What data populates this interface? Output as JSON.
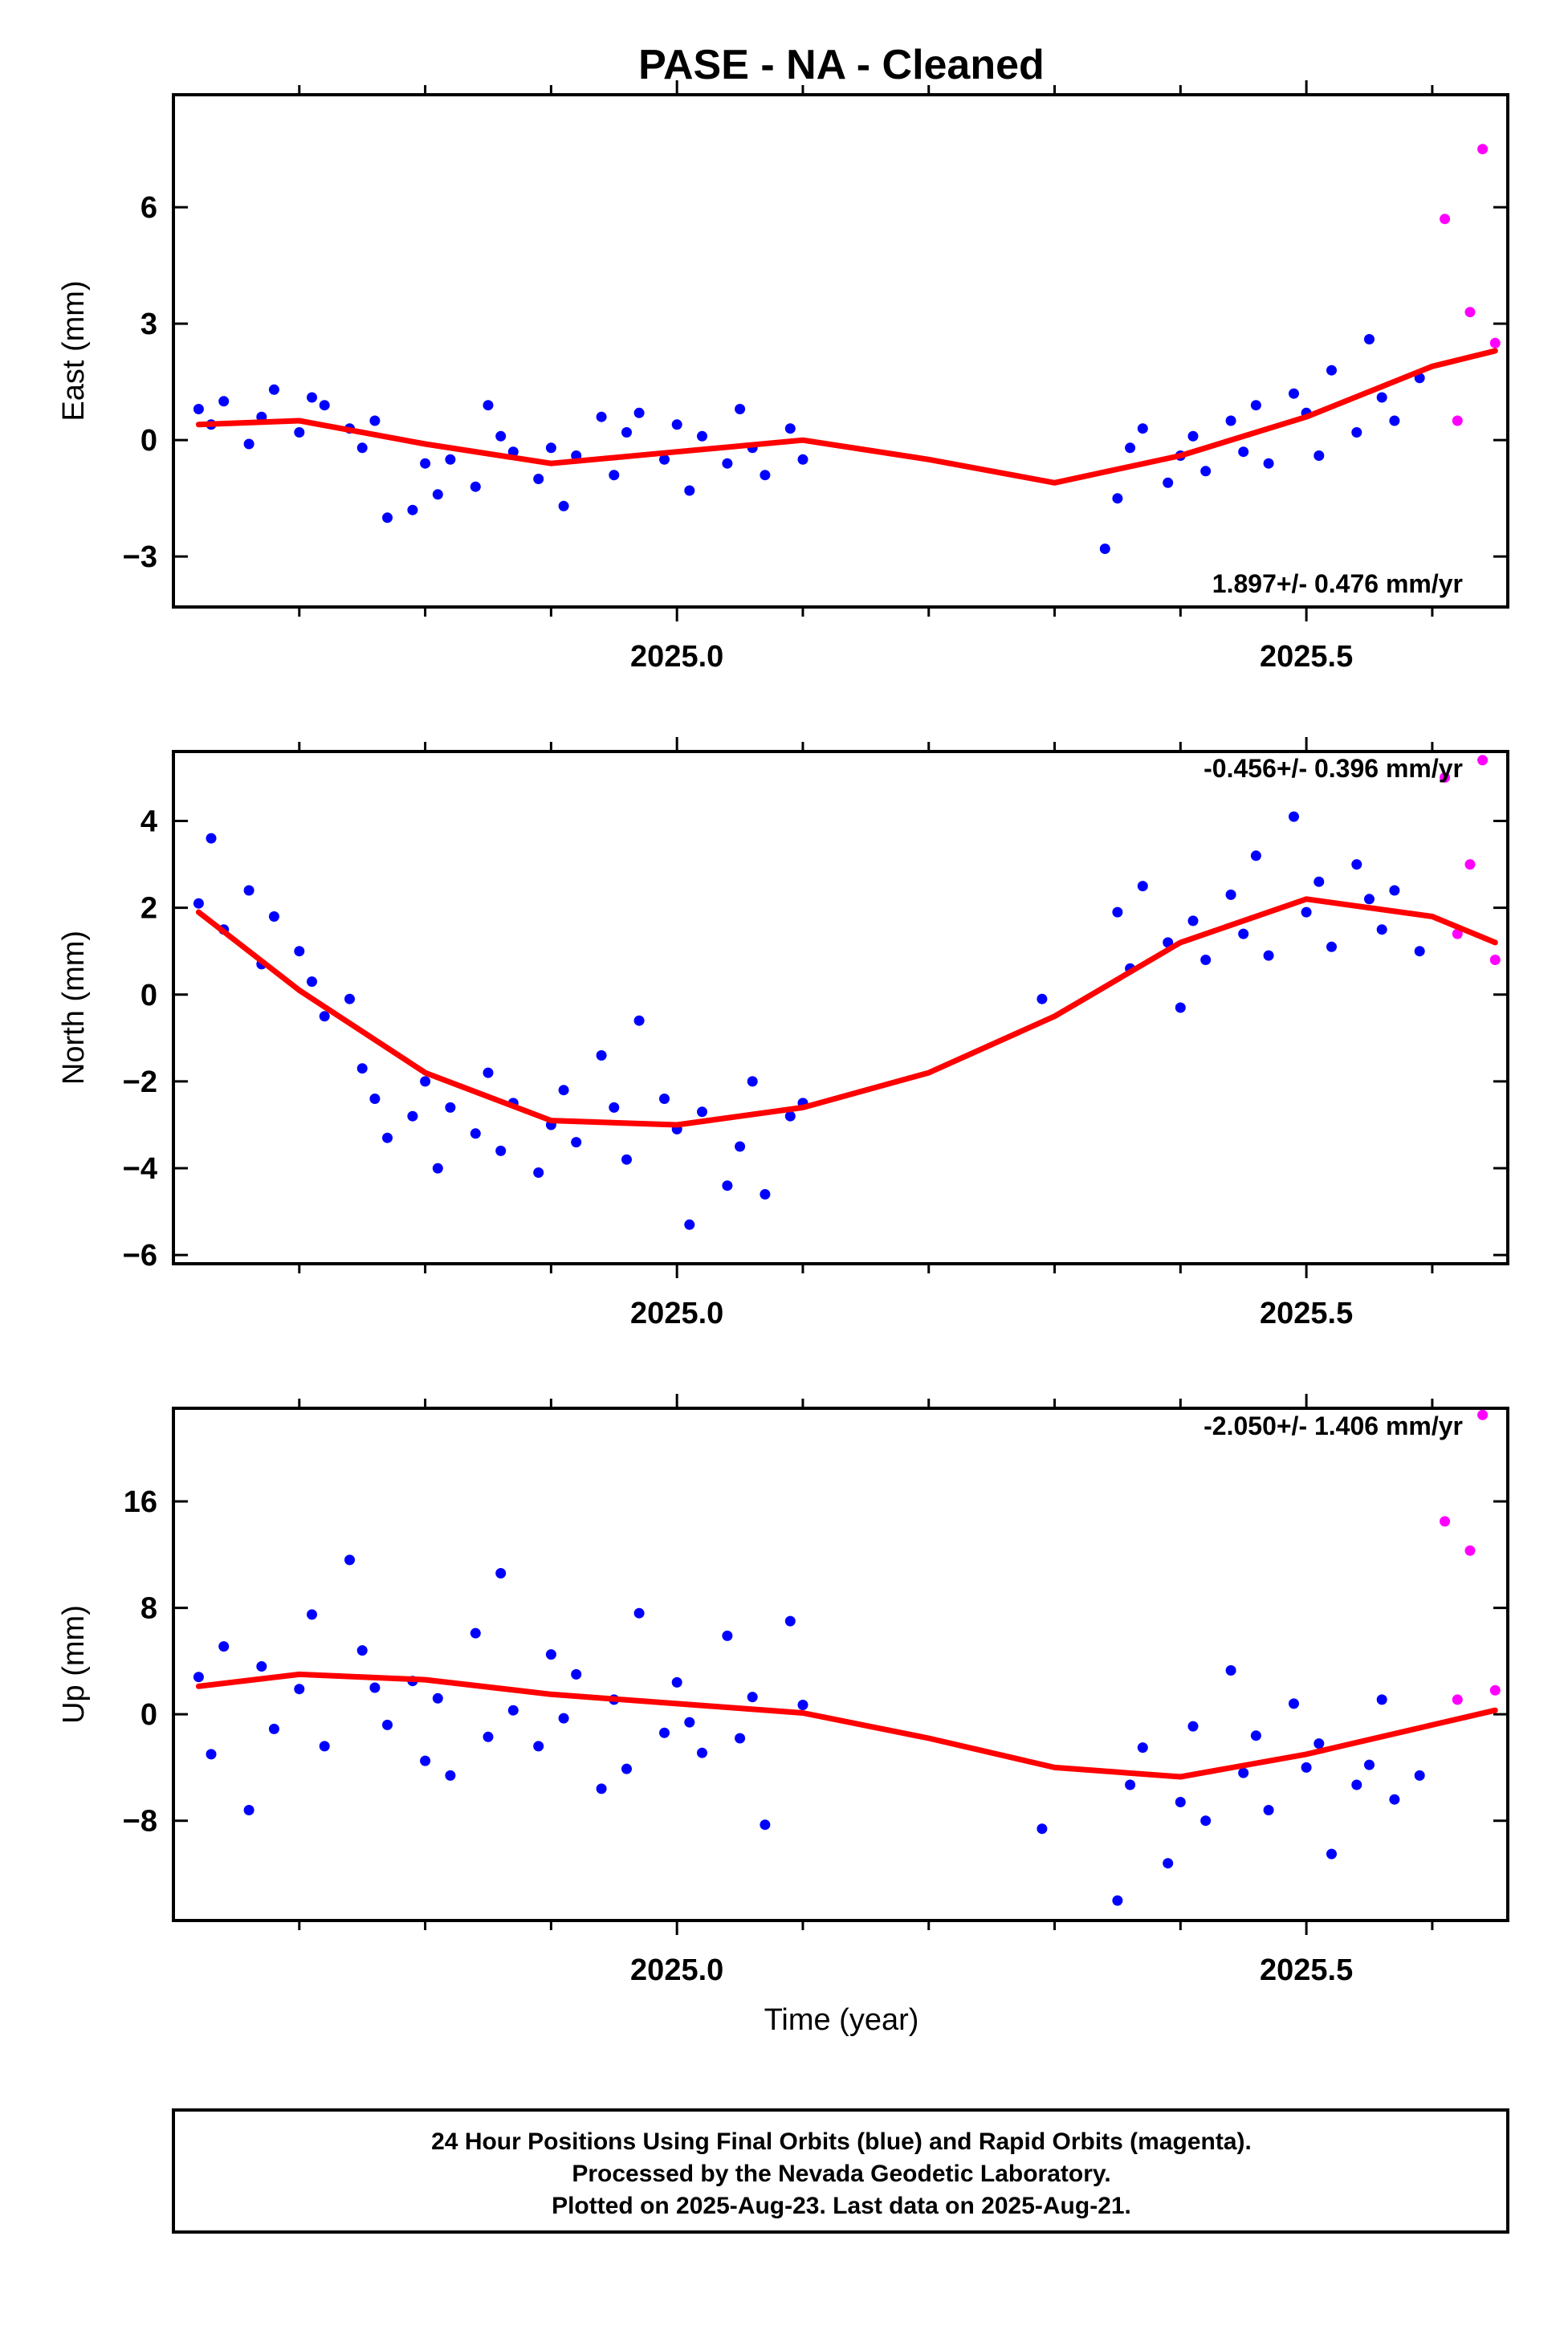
{
  "title": "PASE  - NA - Cleaned",
  "colors": {
    "final_orbits": "#0000ff",
    "rapid_orbits": "#ff00ff",
    "model_fit": "#ff0000",
    "frame": "#000000"
  },
  "chart_data": [
    {
      "type": "scatter",
      "component": "East",
      "ylabel": "East (mm)",
      "xlabel": "",
      "xlim": [
        2024.6,
        2025.66
      ],
      "ylim": [
        -4.3,
        8.9
      ],
      "yticks": [
        -3,
        0,
        3,
        6
      ],
      "xticks_labeled": [
        2025.0,
        2025.5
      ],
      "xticks_minor": [
        2024.7,
        2024.8,
        2024.9,
        2025.1,
        2025.2,
        2025.3,
        2025.4,
        2025.6
      ],
      "rate_label": "1.897+/- 0.476 mm/yr",
      "grid": false,
      "series": [
        {
          "kind": "points",
          "color": "blue",
          "x": [
            2024.62,
            2024.63,
            2024.64,
            2024.66,
            2024.67,
            2024.68,
            2024.7,
            2024.71,
            2024.72,
            2024.74,
            2024.75,
            2024.76,
            2024.77,
            2024.79,
            2024.8,
            2024.81,
            2024.82,
            2024.84,
            2024.85,
            2024.86,
            2024.87,
            2024.89,
            2024.9,
            2024.91,
            2024.92,
            2024.94,
            2024.95,
            2024.96,
            2024.97,
            2024.99,
            2025.0,
            2025.01,
            2025.02,
            2025.04,
            2025.05,
            2025.06,
            2025.07,
            2025.09,
            2025.1,
            2025.34,
            2025.35,
            2025.36,
            2025.37,
            2025.39,
            2025.4,
            2025.41,
            2025.42,
            2025.44,
            2025.45,
            2025.46,
            2025.47,
            2025.49,
            2025.5,
            2025.51,
            2025.52,
            2025.54,
            2025.55,
            2025.56,
            2025.57,
            2025.59
          ],
          "y": [
            0.8,
            0.4,
            1.0,
            -0.1,
            0.6,
            1.3,
            0.2,
            1.1,
            0.9,
            0.3,
            -0.2,
            0.5,
            -2.0,
            -1.8,
            -0.6,
            -1.4,
            -0.5,
            -1.2,
            0.9,
            0.1,
            -0.3,
            -1.0,
            -0.2,
            -1.7,
            -0.4,
            0.6,
            -0.9,
            0.2,
            0.7,
            -0.5,
            0.4,
            -1.3,
            0.1,
            -0.6,
            0.8,
            -0.2,
            -0.9,
            0.3,
            -0.5,
            -2.8,
            -1.5,
            -0.2,
            0.3,
            -1.1,
            -0.4,
            0.1,
            -0.8,
            0.5,
            -0.3,
            0.9,
            -0.6,
            1.2,
            0.7,
            -0.4,
            1.8,
            0.2,
            2.6,
            1.1,
            0.5,
            1.6
          ]
        },
        {
          "kind": "points",
          "color": "magenta",
          "x": [
            2025.61,
            2025.62,
            2025.63,
            2025.64,
            2025.65
          ],
          "y": [
            5.7,
            0.5,
            3.3,
            7.5,
            2.5
          ]
        },
        {
          "kind": "line",
          "color": "red",
          "x": [
            2024.62,
            2024.7,
            2024.8,
            2024.9,
            2025.0,
            2025.1,
            2025.2,
            2025.3,
            2025.4,
            2025.5,
            2025.6,
            2025.65
          ],
          "y": [
            0.4,
            0.5,
            -0.1,
            -0.6,
            -0.3,
            0.0,
            -0.5,
            -1.1,
            -0.4,
            0.6,
            1.9,
            2.3
          ]
        }
      ]
    },
    {
      "type": "scatter",
      "component": "North",
      "ylabel": "North (mm)",
      "xlabel": "",
      "xlim": [
        2024.6,
        2025.66
      ],
      "ylim": [
        -6.2,
        5.6
      ],
      "yticks": [
        -6,
        -4,
        -2,
        0,
        2,
        4
      ],
      "xticks_labeled": [
        2025.0,
        2025.5
      ],
      "xticks_minor": [
        2024.7,
        2024.8,
        2024.9,
        2025.1,
        2025.2,
        2025.3,
        2025.4,
        2025.6
      ],
      "rate_label": "-0.456+/- 0.396 mm/yr",
      "grid": false,
      "series": [
        {
          "kind": "points",
          "color": "blue",
          "x": [
            2024.62,
            2024.63,
            2024.64,
            2024.66,
            2024.67,
            2024.68,
            2024.7,
            2024.71,
            2024.72,
            2024.74,
            2024.75,
            2024.76,
            2024.77,
            2024.79,
            2024.8,
            2024.81,
            2024.82,
            2024.84,
            2024.85,
            2024.86,
            2024.87,
            2024.89,
            2024.9,
            2024.91,
            2024.92,
            2024.94,
            2024.95,
            2024.96,
            2024.97,
            2024.99,
            2025.0,
            2025.01,
            2025.02,
            2025.04,
            2025.05,
            2025.06,
            2025.07,
            2025.09,
            2025.1,
            2025.29,
            2025.35,
            2025.36,
            2025.37,
            2025.39,
            2025.4,
            2025.41,
            2025.42,
            2025.44,
            2025.45,
            2025.46,
            2025.47,
            2025.49,
            2025.5,
            2025.51,
            2025.52,
            2025.54,
            2025.55,
            2025.56,
            2025.57,
            2025.59
          ],
          "y": [
            2.1,
            3.6,
            1.5,
            2.4,
            0.7,
            1.8,
            1.0,
            0.3,
            -0.5,
            -0.1,
            -1.7,
            -2.4,
            -3.3,
            -2.8,
            -2.0,
            -4.0,
            -2.6,
            -3.2,
            -1.8,
            -3.6,
            -2.5,
            -4.1,
            -3.0,
            -2.2,
            -3.4,
            -1.4,
            -2.6,
            -3.8,
            -0.6,
            -2.4,
            -3.1,
            -5.3,
            -2.7,
            -4.4,
            -3.5,
            -2.0,
            -4.6,
            -2.8,
            -2.5,
            -0.1,
            1.9,
            0.6,
            2.5,
            1.2,
            -0.3,
            1.7,
            0.8,
            2.3,
            1.4,
            3.2,
            0.9,
            4.1,
            1.9,
            2.6,
            1.1,
            3.0,
            2.2,
            1.5,
            2.4,
            1.0
          ]
        },
        {
          "kind": "points",
          "color": "magenta",
          "x": [
            2025.61,
            2025.62,
            2025.63,
            2025.64,
            2025.65
          ],
          "y": [
            5.0,
            1.4,
            3.0,
            5.4,
            0.8
          ]
        },
        {
          "kind": "line",
          "color": "red",
          "x": [
            2024.62,
            2024.7,
            2024.8,
            2024.9,
            2025.0,
            2025.1,
            2025.2,
            2025.3,
            2025.4,
            2025.5,
            2025.6,
            2025.65
          ],
          "y": [
            1.9,
            0.1,
            -1.8,
            -2.9,
            -3.0,
            -2.6,
            -1.8,
            -0.5,
            1.2,
            2.2,
            1.8,
            1.2
          ]
        }
      ]
    },
    {
      "type": "scatter",
      "component": "Up",
      "ylabel": "Up (mm)",
      "xlabel": "Time (year)",
      "xlim": [
        2024.6,
        2025.66
      ],
      "ylim": [
        -15.5,
        23.0
      ],
      "yticks": [
        -8,
        0,
        8,
        16
      ],
      "xticks_labeled": [
        2025.0,
        2025.5
      ],
      "xticks_minor": [
        2024.7,
        2024.8,
        2024.9,
        2025.1,
        2025.2,
        2025.3,
        2025.4,
        2025.6
      ],
      "rate_label": "-2.050+/- 1.406 mm/yr",
      "grid": false,
      "series": [
        {
          "kind": "points",
          "color": "blue",
          "x": [
            2024.62,
            2024.63,
            2024.64,
            2024.66,
            2024.67,
            2024.68,
            2024.7,
            2024.71,
            2024.72,
            2024.74,
            2024.75,
            2024.76,
            2024.77,
            2024.79,
            2024.8,
            2024.81,
            2024.82,
            2024.84,
            2024.85,
            2024.86,
            2024.87,
            2024.89,
            2024.9,
            2024.91,
            2024.92,
            2024.94,
            2024.95,
            2024.96,
            2024.97,
            2024.99,
            2025.0,
            2025.01,
            2025.02,
            2025.04,
            2025.05,
            2025.06,
            2025.07,
            2025.09,
            2025.1,
            2025.29,
            2025.35,
            2025.36,
            2025.37,
            2025.39,
            2025.4,
            2025.41,
            2025.42,
            2025.44,
            2025.45,
            2025.46,
            2025.47,
            2025.49,
            2025.5,
            2025.51,
            2025.52,
            2025.54,
            2025.55,
            2025.56,
            2025.57,
            2025.59
          ],
          "y": [
            2.8,
            -3.0,
            5.1,
            -7.2,
            3.6,
            -1.1,
            1.9,
            7.5,
            -2.4,
            11.6,
            4.8,
            2.0,
            -0.8,
            2.5,
            -3.5,
            1.2,
            -4.6,
            6.1,
            -1.7,
            10.6,
            0.3,
            -2.4,
            4.5,
            -0.3,
            3.0,
            -5.6,
            1.1,
            -4.1,
            7.6,
            -1.4,
            2.4,
            -0.6,
            -2.9,
            5.9,
            -1.8,
            1.3,
            -8.3,
            7.0,
            0.7,
            -8.6,
            -14.0,
            -5.3,
            -2.5,
            -11.2,
            -6.6,
            -0.9,
            -8.0,
            3.3,
            -4.4,
            -1.6,
            -7.2,
            0.8,
            -4.0,
            -2.2,
            -10.5,
            -5.3,
            -3.8,
            1.1,
            -6.4,
            -4.6
          ]
        },
        {
          "kind": "points",
          "color": "magenta",
          "x": [
            2025.61,
            2025.62,
            2025.63,
            2025.64,
            2025.65
          ],
          "y": [
            14.5,
            1.1,
            12.3,
            22.5,
            1.8
          ]
        },
        {
          "kind": "line",
          "color": "red",
          "x": [
            2024.62,
            2024.7,
            2024.8,
            2024.9,
            2025.0,
            2025.1,
            2025.2,
            2025.3,
            2025.4,
            2025.5,
            2025.6,
            2025.65
          ],
          "y": [
            2.1,
            3.0,
            2.6,
            1.5,
            0.8,
            0.1,
            -1.8,
            -4.0,
            -4.7,
            -3.0,
            -0.8,
            0.3
          ]
        }
      ]
    }
  ],
  "footer": {
    "line1": "24 Hour Positions Using Final Orbits (blue) and Rapid Orbits (magenta).",
    "line2": "Processed by the Nevada Geodetic Laboratory.",
    "line3": "Plotted on 2025-Aug-23. Last data on 2025-Aug-21."
  }
}
